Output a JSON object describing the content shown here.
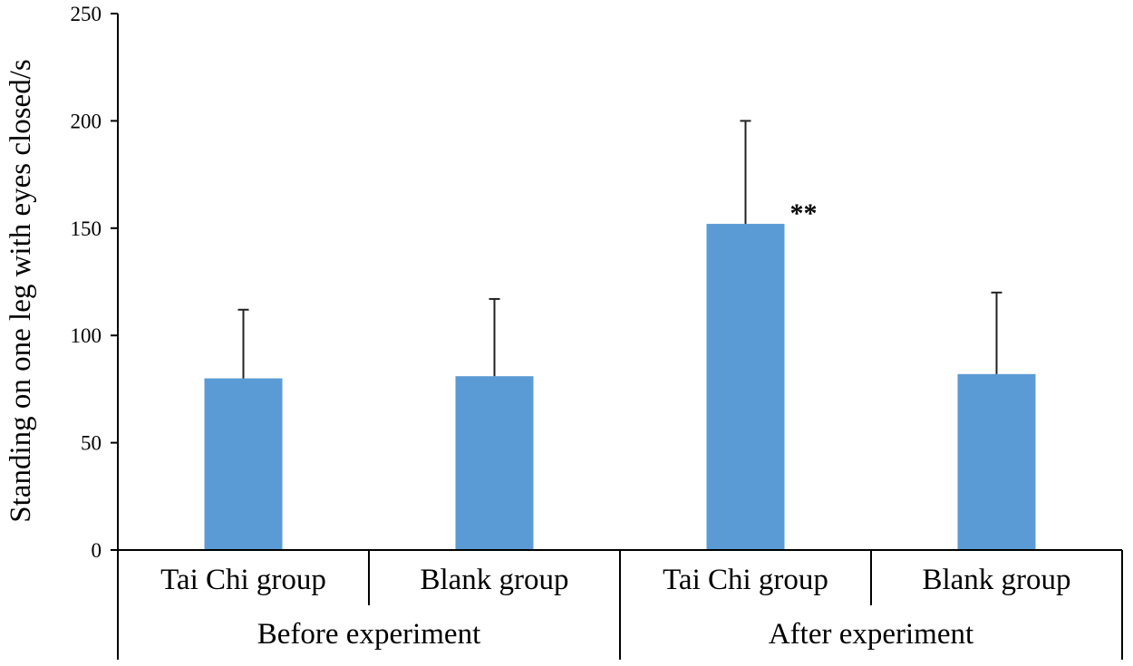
{
  "chart_data": {
    "type": "bar",
    "title": "",
    "xlabel": "",
    "ylabel": "Standing on one leg with eyes closed/s",
    "ylim": [
      0,
      250
    ],
    "yticks": [
      0,
      50,
      100,
      150,
      200,
      250
    ],
    "categories": [
      "Tai Chi group",
      "Blank group",
      "Tai Chi group",
      "Blank group"
    ],
    "groups": [
      {
        "label": "Before experiment",
        "categories": [
          0,
          1
        ]
      },
      {
        "label": "After experiment",
        "categories": [
          2,
          3
        ]
      }
    ],
    "series": [
      {
        "name": "Standing on one leg with eyes closed",
        "values": [
          80,
          81,
          152,
          82
        ],
        "error_upper": [
          112,
          117,
          200,
          120
        ]
      }
    ],
    "annotations": [
      {
        "category_index": 2,
        "text": "**"
      }
    ],
    "colors": {
      "bar": "#5B9BD5",
      "axis": "#000000",
      "error_bar": "#222222"
    }
  }
}
